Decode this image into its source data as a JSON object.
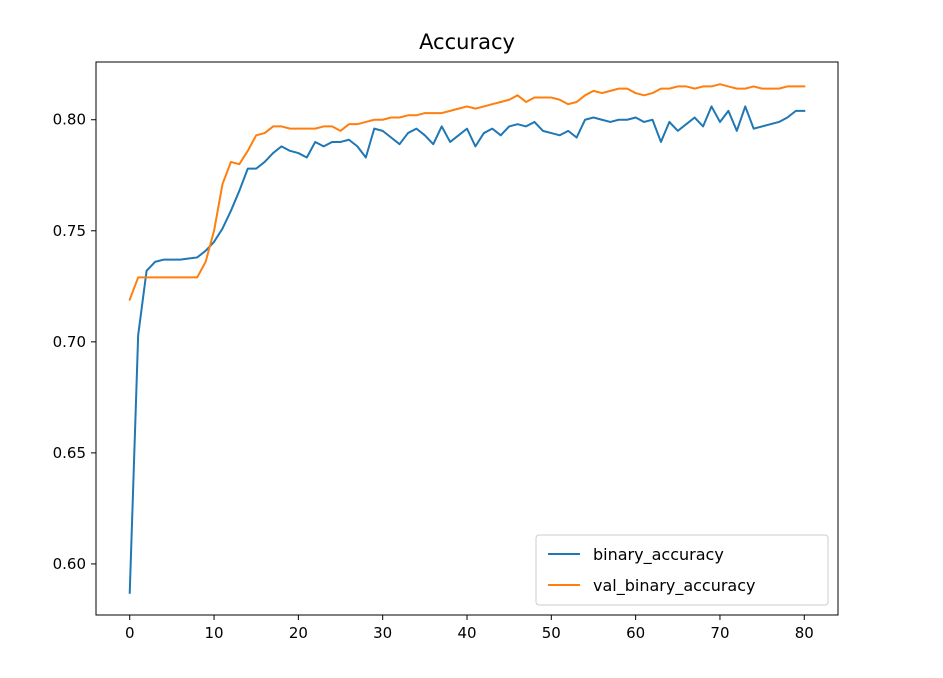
{
  "chart_data": {
    "type": "line",
    "title": "Accuracy",
    "xlabel": "",
    "ylabel": "",
    "xlim": [
      -4,
      84
    ],
    "ylim": [
      0.577,
      0.826
    ],
    "xticks": [
      0,
      10,
      20,
      30,
      40,
      50,
      60,
      70,
      80
    ],
    "xtick_labels": [
      "0",
      "10",
      "20",
      "30",
      "40",
      "50",
      "60",
      "70",
      "80"
    ],
    "yticks": [
      0.6,
      0.65,
      0.7,
      0.75,
      0.8
    ],
    "ytick_labels": [
      "0.60",
      "0.65",
      "0.70",
      "0.75",
      "0.80"
    ],
    "grid": false,
    "legend_position": "lower-right",
    "series": [
      {
        "name": "binary_accuracy",
        "color": "#1f77b4",
        "values": [
          0.587,
          0.703,
          0.732,
          0.736,
          0.737,
          0.737,
          0.737,
          0.7375,
          0.738,
          0.741,
          0.745,
          0.751,
          0.759,
          0.768,
          0.778,
          0.778,
          0.781,
          0.785,
          0.788,
          0.786,
          0.785,
          0.783,
          0.79,
          0.788,
          0.79,
          0.79,
          0.791,
          0.788,
          0.783,
          0.796,
          0.795,
          0.792,
          0.789,
          0.794,
          0.796,
          0.793,
          0.789,
          0.797,
          0.79,
          0.793,
          0.796,
          0.788,
          0.794,
          0.796,
          0.793,
          0.797,
          0.798,
          0.797,
          0.799,
          0.795,
          0.794,
          0.793,
          0.795,
          0.792,
          0.8,
          0.801,
          0.8,
          0.799,
          0.8,
          0.8,
          0.801,
          0.799,
          0.8,
          0.79,
          0.799,
          0.795,
          0.798,
          0.801,
          0.797,
          0.806,
          0.799,
          0.804,
          0.795,
          0.806,
          0.796,
          0.797,
          0.798,
          0.799,
          0.801,
          0.804,
          0.804
        ]
      },
      {
        "name": "val_binary_accuracy",
        "color": "#ff7f0e",
        "values": [
          0.719,
          0.729,
          0.729,
          0.729,
          0.729,
          0.729,
          0.729,
          0.729,
          0.729,
          0.736,
          0.75,
          0.771,
          0.781,
          0.78,
          0.786,
          0.793,
          0.794,
          0.797,
          0.797,
          0.796,
          0.796,
          0.796,
          0.796,
          0.797,
          0.797,
          0.795,
          0.798,
          0.798,
          0.799,
          0.8,
          0.8,
          0.801,
          0.801,
          0.802,
          0.802,
          0.803,
          0.803,
          0.803,
          0.804,
          0.805,
          0.806,
          0.805,
          0.806,
          0.807,
          0.808,
          0.809,
          0.811,
          0.808,
          0.81,
          0.81,
          0.81,
          0.809,
          0.807,
          0.808,
          0.811,
          0.813,
          0.812,
          0.813,
          0.814,
          0.814,
          0.812,
          0.811,
          0.812,
          0.814,
          0.814,
          0.815,
          0.815,
          0.814,
          0.815,
          0.815,
          0.816,
          0.815,
          0.814,
          0.814,
          0.815,
          0.814,
          0.814,
          0.814,
          0.815,
          0.815,
          0.815
        ]
      }
    ]
  }
}
